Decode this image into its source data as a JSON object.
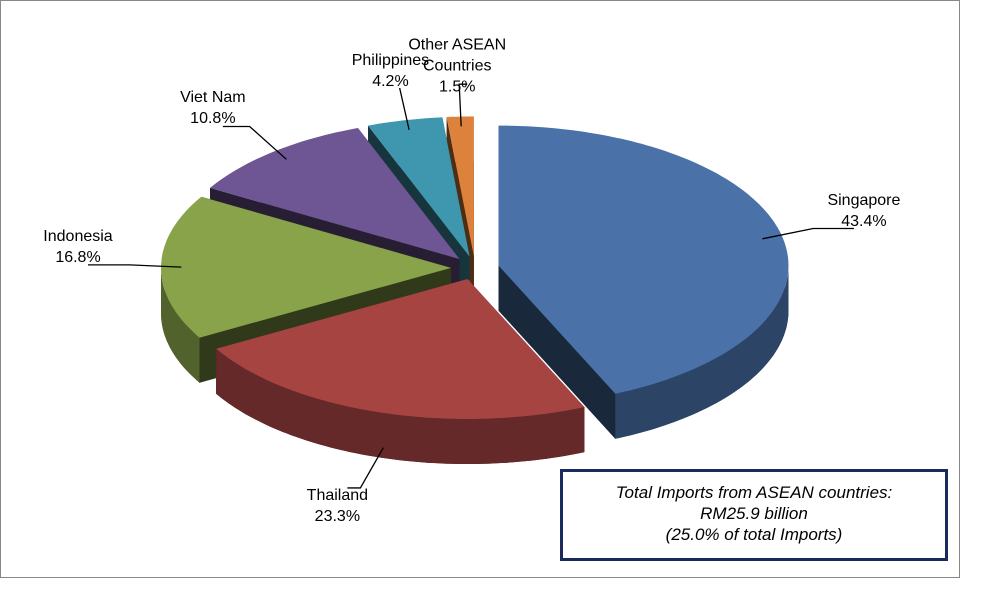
{
  "chart_data": {
    "type": "pie",
    "categories": [
      "Singapore",
      "Thailand",
      "Indonesia",
      "Viet Nam",
      "Philippines",
      "Other ASEAN Countries"
    ],
    "values": [
      43.4,
      23.3,
      16.8,
      10.8,
      4.2,
      1.5
    ],
    "value_labels": [
      "43.4%",
      "23.3%",
      "16.8%",
      "10.8%",
      "4.2%",
      "1.5%"
    ],
    "colors": [
      "#4a72a8",
      "#a64442",
      "#88a34a",
      "#6e5594",
      "#3e97ae",
      "#dc823c"
    ],
    "annotation": [
      "Total Imports from ASEAN countries:",
      "RM25.9 billion",
      "(25.0% of total Imports)"
    ]
  }
}
